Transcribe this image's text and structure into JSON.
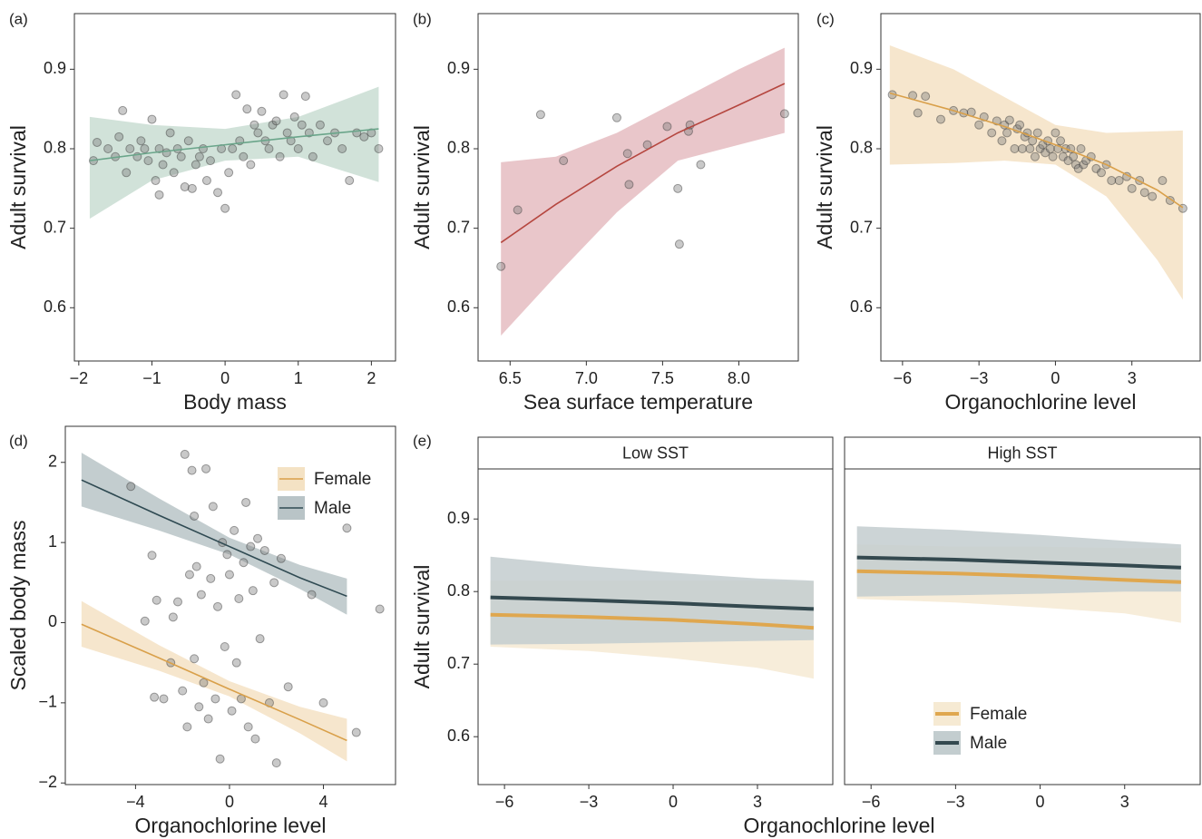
{
  "chart_data": [
    {
      "type": "scatter",
      "panel_label": "(a)",
      "x_label": "Body mass",
      "y_label": "Adult survival",
      "xlim": [
        -2.06,
        2.33
      ],
      "ylim": [
        0.533,
        0.97
      ],
      "xticks": [
        {
          "value": -2,
          "label": "−2"
        },
        {
          "value": -1,
          "label": "−1"
        },
        0,
        1,
        2
      ],
      "yticks": [
        0.6,
        0.7,
        0.8,
        0.9
      ],
      "points": {
        "x": [
          -1.8,
          -1.75,
          -1.6,
          -1.5,
          -1.45,
          -1.4,
          -1.35,
          -1.3,
          -1.2,
          -1.15,
          -1.1,
          -1.05,
          -1.0,
          -0.95,
          -0.9,
          -0.9,
          -0.85,
          -0.8,
          -0.75,
          -0.7,
          -0.65,
          -0.6,
          -0.55,
          -0.5,
          -0.45,
          -0.4,
          -0.35,
          -0.3,
          -0.25,
          -0.2,
          -0.1,
          -0.05,
          0.0,
          0.05,
          0.1,
          0.15,
          0.2,
          0.25,
          0.3,
          0.35,
          0.4,
          0.45,
          0.5,
          0.55,
          0.6,
          0.65,
          0.7,
          0.75,
          0.8,
          0.85,
          0.9,
          0.95,
          1.0,
          1.05,
          1.1,
          1.15,
          1.2,
          1.3,
          1.4,
          1.5,
          1.6,
          1.7,
          1.8,
          1.9,
          2.0,
          2.1
        ],
        "y": [
          0.785,
          0.808,
          0.8,
          0.79,
          0.815,
          0.848,
          0.77,
          0.8,
          0.79,
          0.81,
          0.8,
          0.785,
          0.837,
          0.76,
          0.742,
          0.8,
          0.78,
          0.795,
          0.82,
          0.77,
          0.8,
          0.79,
          0.752,
          0.81,
          0.75,
          0.78,
          0.79,
          0.8,
          0.76,
          0.785,
          0.745,
          0.8,
          0.725,
          0.77,
          0.8,
          0.868,
          0.81,
          0.79,
          0.85,
          0.78,
          0.83,
          0.82,
          0.847,
          0.81,
          0.8,
          0.83,
          0.835,
          0.79,
          0.868,
          0.82,
          0.81,
          0.84,
          0.8,
          0.83,
          0.866,
          0.82,
          0.79,
          0.83,
          0.81,
          0.82,
          0.8,
          0.76,
          0.82,
          0.815,
          0.82,
          0.8
        ]
      },
      "series": [
        {
          "color": "#6aa58a",
          "band_color": "#c9ddd2",
          "x": [
            -1.85,
            -1,
            0,
            1,
            2.1
          ],
          "values": [
            0.785,
            0.795,
            0.805,
            0.815,
            0.825
          ],
          "lower": [
            0.712,
            0.76,
            0.785,
            0.79,
            0.758
          ],
          "upper": [
            0.84,
            0.83,
            0.825,
            0.84,
            0.878
          ]
        }
      ]
    },
    {
      "type": "scatter",
      "panel_label": "(b)",
      "x_label": "Sea surface temperature",
      "y_label": "Adult survival",
      "xlim": [
        6.29,
        8.39
      ],
      "ylim": [
        0.533,
        0.97
      ],
      "xticks": [
        6.5,
        {
          "value": 7,
          "label": "7.0"
        },
        7.5,
        {
          "value": 8,
          "label": "8.0"
        }
      ],
      "yticks": [
        0.6,
        0.7,
        0.8,
        0.9
      ],
      "points": {
        "x": [
          6.44,
          6.55,
          6.7,
          6.85,
          7.2,
          7.27,
          7.28,
          7.4,
          7.53,
          7.6,
          7.61,
          7.67,
          7.68,
          7.75,
          8.3
        ],
        "y": [
          0.652,
          0.723,
          0.843,
          0.785,
          0.839,
          0.794,
          0.755,
          0.805,
          0.828,
          0.75,
          0.68,
          0.822,
          0.83,
          0.78,
          0.844
        ]
      },
      "series": [
        {
          "color": "#b5463f",
          "band_color": "#e5bcc1",
          "x": [
            6.44,
            6.8,
            7.2,
            7.6,
            8.0,
            8.3
          ],
          "values": [
            0.682,
            0.73,
            0.778,
            0.82,
            0.855,
            0.882
          ],
          "lower": [
            0.565,
            0.64,
            0.72,
            0.785,
            0.805,
            0.82
          ],
          "upper": [
            0.783,
            0.79,
            0.82,
            0.86,
            0.9,
            0.927
          ]
        }
      ]
    },
    {
      "type": "scatter",
      "panel_label": "(c)",
      "x_label": "Organochlorine level",
      "y_label": "Adult survival",
      "xlim": [
        -6.85,
        5.68
      ],
      "ylim": [
        0.533,
        0.97
      ],
      "xticks": [
        {
          "value": -6,
          "label": "−6"
        },
        {
          "value": -3,
          "label": "−3"
        },
        0,
        3
      ],
      "yticks": [
        0.6,
        0.7,
        0.8,
        0.9
      ],
      "points": {
        "x": [
          -6.4,
          -5.6,
          -5.4,
          -5.1,
          -4.5,
          -4,
          -3.6,
          -3.3,
          -3,
          -2.8,
          -2.5,
          -2.3,
          -2.1,
          -2,
          -1.9,
          -1.8,
          -1.6,
          -1.5,
          -1.4,
          -1.3,
          -1.2,
          -1.1,
          -1,
          -0.9,
          -0.8,
          -0.7,
          -0.6,
          -0.5,
          -0.4,
          -0.3,
          -0.2,
          -0.1,
          0,
          0.1,
          0.2,
          0.3,
          0.4,
          0.5,
          0.6,
          0.7,
          0.8,
          0.9,
          1,
          1.1,
          1.2,
          1.4,
          1.6,
          1.8,
          2,
          2.2,
          2.5,
          2.8,
          3,
          3.3,
          3.5,
          3.8,
          4.2,
          4.5,
          5
        ],
        "y": [
          0.868,
          0.867,
          0.845,
          0.866,
          0.837,
          0.848,
          0.845,
          0.846,
          0.83,
          0.84,
          0.82,
          0.835,
          0.81,
          0.83,
          0.82,
          0.836,
          0.8,
          0.825,
          0.83,
          0.8,
          0.815,
          0.82,
          0.8,
          0.81,
          0.79,
          0.82,
          0.8,
          0.805,
          0.795,
          0.81,
          0.8,
          0.79,
          0.82,
          0.8,
          0.81,
          0.79,
          0.8,
          0.785,
          0.8,
          0.79,
          0.78,
          0.775,
          0.8,
          0.78,
          0.785,
          0.79,
          0.775,
          0.77,
          0.78,
          0.76,
          0.76,
          0.765,
          0.75,
          0.76,
          0.745,
          0.74,
          0.76,
          0.735,
          0.725
        ]
      },
      "series": [
        {
          "color": "#d9a04a",
          "band_color": "#f4e2c4",
          "x": [
            -6.5,
            -4,
            -2,
            0,
            2,
            4,
            5
          ],
          "values": [
            0.87,
            0.848,
            0.828,
            0.805,
            0.78,
            0.748,
            0.726
          ],
          "lower": [
            0.78,
            0.782,
            0.785,
            0.78,
            0.74,
            0.66,
            0.61
          ],
          "upper": [
            0.93,
            0.9,
            0.865,
            0.83,
            0.82,
            0.822,
            0.823
          ]
        }
      ]
    },
    {
      "type": "scatter",
      "panel_label": "(d)",
      "x_label": "Organochlorine level",
      "y_label": "Scaled body mass",
      "xlim": [
        -6.99,
        7.07
      ],
      "ylim": [
        -2.02,
        2.45
      ],
      "xticks": [
        {
          "value": -4,
          "label": "−4"
        },
        0,
        4
      ],
      "yticks": [
        {
          "value": -2,
          "label": "−2"
        },
        {
          "value": -1,
          "label": "−1"
        },
        0,
        1,
        2
      ],
      "legend": "top-right",
      "points": {
        "x": [
          -4.2,
          -3.6,
          -3.3,
          -3.2,
          -3.1,
          -2.8,
          -2.5,
          -2.4,
          -2.2,
          -2,
          -1.9,
          -1.8,
          -1.7,
          -1.6,
          -1.5,
          -1.5,
          -1.4,
          -1.3,
          -1.2,
          -1.1,
          -1,
          -0.9,
          -0.8,
          -0.7,
          -0.6,
          -0.5,
          -0.4,
          -0.3,
          -0.2,
          -0.1,
          0,
          0.1,
          0.2,
          0.3,
          0.4,
          0.5,
          0.6,
          0.7,
          0.8,
          0.9,
          1,
          1.1,
          1.2,
          1.3,
          1.5,
          1.7,
          1.9,
          2,
          2.2,
          2.5,
          3.5,
          4,
          5,
          5.4,
          6.4
        ],
        "y": [
          1.7,
          0.02,
          0.84,
          -0.93,
          0.28,
          -0.95,
          -0.5,
          0.07,
          0.26,
          -0.85,
          2.1,
          -1.3,
          0.6,
          1.9,
          -0.45,
          1.33,
          0.7,
          -1.05,
          0.35,
          -0.75,
          1.92,
          -1.2,
          0.55,
          1.45,
          -0.95,
          0.2,
          -1.7,
          1.0,
          -0.3,
          0.85,
          0.6,
          -1.1,
          1.15,
          -0.5,
          0.3,
          -0.95,
          0.75,
          1.5,
          -1.3,
          0.95,
          0.4,
          -1.45,
          1.05,
          -0.2,
          0.9,
          -1.0,
          0.5,
          -1.75,
          0.8,
          -0.8,
          0.35,
          -1.0,
          1.18,
          -1.37,
          0.17
        ]
      },
      "series": [
        {
          "name": "Female",
          "color": "#d9a04a",
          "band_color": "#f4e2c4",
          "x": [
            -6.3,
            -3,
            0,
            3,
            5
          ],
          "values": [
            -0.02,
            -0.44,
            -0.83,
            -1.21,
            -1.47
          ],
          "lower": [
            -0.3,
            -0.6,
            -0.92,
            -1.38,
            -1.73
          ],
          "upper": [
            0.27,
            -0.28,
            -0.73,
            -1.05,
            -1.2
          ]
        },
        {
          "name": "Male",
          "color": "#2f4a52",
          "band_color": "#b9c4c7",
          "x": [
            -6.3,
            -3,
            0,
            3,
            5
          ],
          "values": [
            1.78,
            1.34,
            0.95,
            0.56,
            0.33
          ],
          "lower": [
            1.45,
            1.15,
            0.85,
            0.42,
            0.1
          ],
          "upper": [
            2.12,
            1.55,
            1.06,
            0.72,
            0.55
          ]
        }
      ]
    },
    {
      "type": "line",
      "panel_label": "(e)",
      "x_label": "Organochlorine level",
      "y_label": "Adult survival",
      "xlim": [
        -6.94,
        5.68
      ],
      "ylim": [
        0.534,
        0.969
      ],
      "xticks": [
        {
          "value": -6,
          "label": "−6"
        },
        {
          "value": -3,
          "label": "−3"
        },
        0,
        3
      ],
      "yticks": [
        0.6,
        0.7,
        0.8,
        0.9
      ],
      "legend": "bottom-left",
      "facets": [
        {
          "title": "Low SST",
          "series": [
            {
              "name": "Female",
              "color": "#dfa74f",
              "band_color": "#f6ead3",
              "x": [
                -6.5,
                -3,
                0,
                3,
                5
              ],
              "values": [
                0.768,
                0.765,
                0.761,
                0.755,
                0.75
              ],
              "lower": [
                0.724,
                0.718,
                0.708,
                0.695,
                0.68
              ],
              "upper": [
                0.815,
                0.815,
                0.815,
                0.815,
                0.814
              ]
            },
            {
              "name": "Male",
              "color": "#34494f",
              "band_color": "#c3cdcf",
              "x": [
                -6.5,
                -3,
                0,
                3,
                5
              ],
              "values": [
                0.792,
                0.788,
                0.784,
                0.779,
                0.776
              ],
              "lower": [
                0.727,
                0.728,
                0.73,
                0.732,
                0.733
              ],
              "upper": [
                0.848,
                0.835,
                0.826,
                0.818,
                0.815
              ]
            }
          ]
        },
        {
          "title": "High SST",
          "series": [
            {
              "name": "Female",
              "color": "#dfa74f",
              "band_color": "#f6ead3",
              "x": [
                -6.5,
                -3,
                0,
                3,
                5
              ],
              "values": [
                0.828,
                0.825,
                0.821,
                0.816,
                0.813
              ],
              "lower": [
                0.79,
                0.785,
                0.778,
                0.77,
                0.757
              ],
              "upper": [
                0.865,
                0.862,
                0.862,
                0.86,
                0.86
              ]
            },
            {
              "name": "Male",
              "color": "#34494f",
              "band_color": "#c3cdcf",
              "x": [
                -6.5,
                -3,
                0,
                3,
                5
              ],
              "values": [
                0.847,
                0.844,
                0.84,
                0.836,
                0.833
              ],
              "lower": [
                0.793,
                0.795,
                0.797,
                0.8,
                0.8
              ],
              "upper": [
                0.89,
                0.885,
                0.878,
                0.87,
                0.865
              ]
            }
          ]
        }
      ]
    }
  ]
}
